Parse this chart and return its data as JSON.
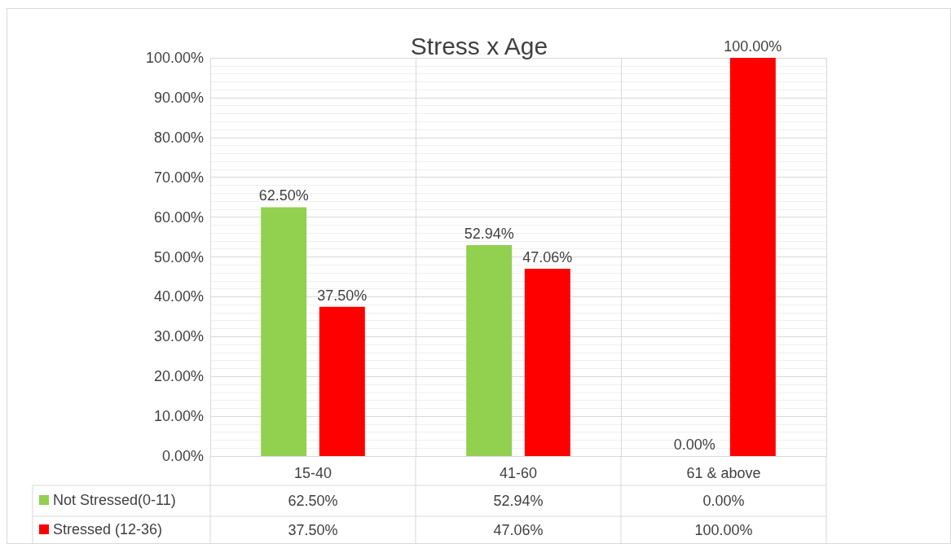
{
  "chart_data": {
    "type": "bar",
    "title": "Stress x Age",
    "categories": [
      "15-40",
      "41-60",
      "61 & above"
    ],
    "series": [
      {
        "name": "Not Stressed(0-11)",
        "color": "#92d050",
        "values": [
          62.5,
          52.94,
          0
        ],
        "value_labels": [
          "62.50%",
          "52.94%",
          "0.00%"
        ]
      },
      {
        "name": "Stressed (12-36)",
        "color": "#ff0000",
        "values": [
          37.5,
          47.06,
          100
        ],
        "value_labels": [
          "37.50%",
          "47.06%",
          "100.00%"
        ]
      }
    ],
    "ylim": [
      0,
      100
    ],
    "yticks": [
      {
        "value": 0,
        "label": "0.00%"
      },
      {
        "value": 10,
        "label": "10.00%"
      },
      {
        "value": 20,
        "label": "20.00%"
      },
      {
        "value": 30,
        "label": "30.00%"
      },
      {
        "value": 40,
        "label": "40.00%"
      },
      {
        "value": 50,
        "label": "50.00%"
      },
      {
        "value": 60,
        "label": "60.00%"
      },
      {
        "value": 70,
        "label": "70.00%"
      },
      {
        "value": 80,
        "label": "80.00%"
      },
      {
        "value": 90,
        "label": "90.00%"
      },
      {
        "value": 100,
        "label": "100.00%"
      }
    ],
    "grid": true,
    "legend": "bottom left"
  }
}
